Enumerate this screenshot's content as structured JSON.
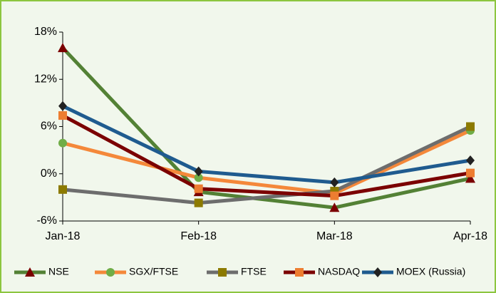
{
  "chart_data": {
    "type": "line",
    "categories": [
      "Jan-18",
      "Feb-18",
      "Mar-18",
      "Apr-18"
    ],
    "series": [
      {
        "name": "NSE",
        "color": "#538135",
        "marker": "triangle",
        "marker_color": "#7b0000",
        "values": [
          16,
          -2.3,
          -4.3,
          -0.6
        ]
      },
      {
        "name": "SGX/FTSE",
        "color": "#f4883a",
        "marker": "circle",
        "marker_color": "#70ad47",
        "values": [
          3.9,
          -0.5,
          -2.5,
          5.5
        ]
      },
      {
        "name": "FTSE",
        "color": "#6d6d6d",
        "marker": "square",
        "marker_color": "#8c7a00",
        "values": [
          -2,
          -3.7,
          -2.2,
          6
        ]
      },
      {
        "name": "NASDAQ",
        "color": "#7b0000",
        "marker": "square",
        "marker_color": "#ed7d31",
        "values": [
          7.4,
          -1.9,
          -2.8,
          0.1
        ]
      },
      {
        "name": "MOEX (Russia)",
        "color": "#1f5b8f",
        "marker": "diamond",
        "marker_color": "#222222",
        "values": [
          8.6,
          0.3,
          -1.1,
          1.7
        ]
      }
    ],
    "ylim": [
      -6,
      18
    ],
    "yticks": [
      {
        "value": -6,
        "label": "-6%"
      },
      {
        "value": 0,
        "label": "0%"
      },
      {
        "value": 6,
        "label": "6%"
      },
      {
        "value": 12,
        "label": "12%"
      },
      {
        "value": 18,
        "label": "18%"
      }
    ],
    "grid": false,
    "legend": "bottom"
  }
}
